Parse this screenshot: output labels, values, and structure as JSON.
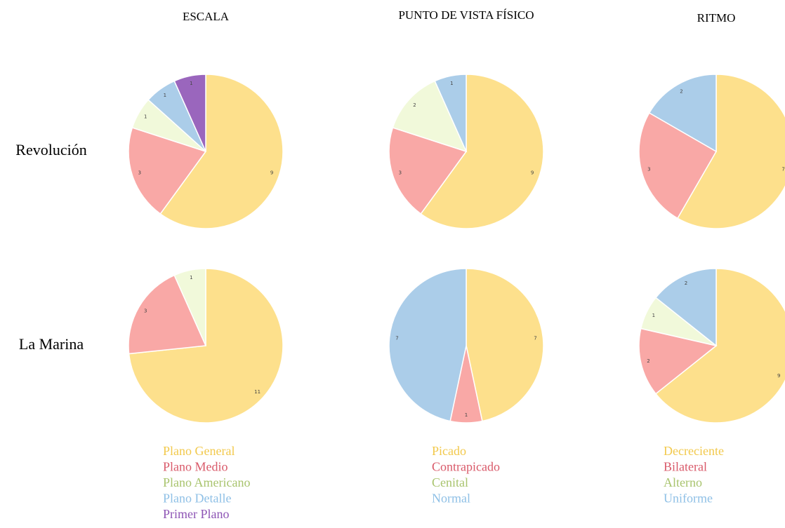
{
  "columns": [
    {
      "title": "ESCALA",
      "categories": [
        "Plano General",
        "Plano Medio",
        "Plano Americano",
        "Plano Detalle",
        "Primer Plano"
      ],
      "colors": [
        "#fde08c",
        "#f9a8a6",
        "#f1f9da",
        "#abcde9",
        "#9a66bd"
      ],
      "label_colors": [
        "#f2c94c",
        "#d95a6a",
        "#a9c46e",
        "#8fc0e6",
        "#8e55b5"
      ]
    },
    {
      "title": "PUNTO DE VISTA FÍSICO",
      "categories": [
        "Picado",
        "Contrapicado",
        "Cenital",
        "Normal"
      ],
      "colors": [
        "#fde08c",
        "#f9a8a6",
        "#f1f9da",
        "#abcde9"
      ],
      "label_colors": [
        "#f2c94c",
        "#d95a6a",
        "#a9c46e",
        "#8fc0e6"
      ]
    },
    {
      "title": "RITMO",
      "categories": [
        "Decreciente",
        "Bilateral",
        "Alterno",
        "Uniforme"
      ],
      "colors": [
        "#fde08c",
        "#f9a8a6",
        "#f1f9da",
        "#abcde9"
      ],
      "label_colors": [
        "#f2c94c",
        "#d95a6a",
        "#a9c46e",
        "#8fc0e6"
      ]
    }
  ],
  "rows": [
    "Revolución",
    "La Marina"
  ],
  "chart_data": [
    {
      "type": "pie",
      "values": [
        9,
        3,
        1,
        1,
        1
      ]
    },
    {
      "type": "pie",
      "values": [
        9,
        3,
        2,
        1
      ]
    },
    {
      "type": "pie",
      "values": [
        7,
        3,
        null,
        2
      ]
    },
    {
      "type": "pie",
      "values": [
        11,
        3,
        1,
        null,
        null
      ]
    },
    {
      "type": "pie",
      "values": [
        7,
        1,
        null,
        7
      ]
    },
    {
      "type": "pie",
      "values": [
        9,
        2,
        1,
        2
      ]
    }
  ]
}
